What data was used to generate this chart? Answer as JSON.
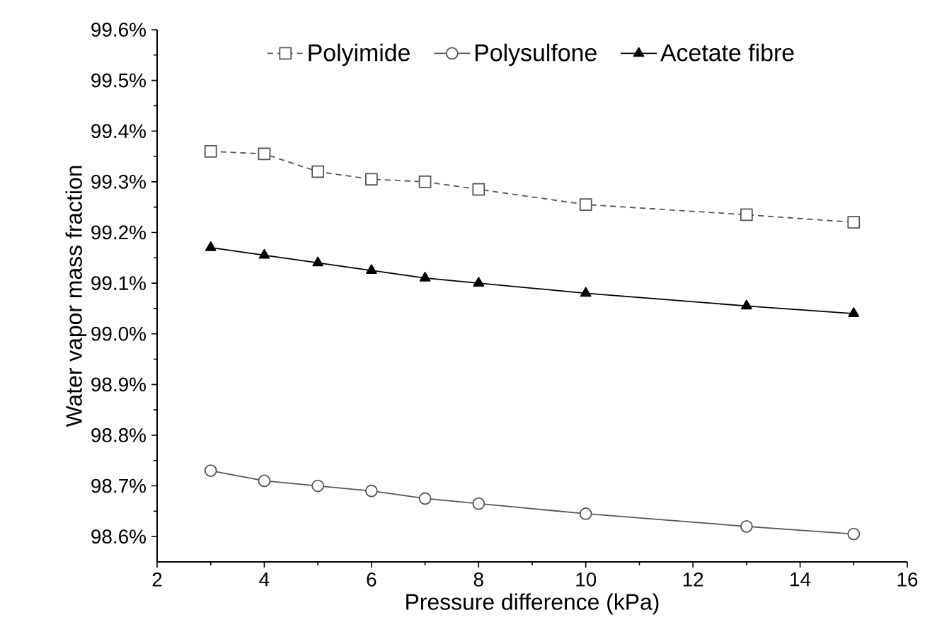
{
  "chart_data": {
    "type": "line",
    "xlabel": "Pressure difference (kPa)",
    "ylabel": "Water vapor mass fraction",
    "x": [
      3,
      4,
      5,
      6,
      7,
      8,
      10,
      13,
      15
    ],
    "series": [
      {
        "name": "Polyimide",
        "color": "#555555",
        "marker": "square",
        "line_style": "dashed",
        "values": [
          99.36,
          99.355,
          99.32,
          99.305,
          99.3,
          99.285,
          99.255,
          99.235,
          99.22
        ]
      },
      {
        "name": "Polysulfone",
        "color": "#555555",
        "marker": "circle",
        "line_style": "solid",
        "values": [
          98.73,
          98.71,
          98.7,
          98.69,
          98.675,
          98.665,
          98.645,
          98.62,
          98.605
        ]
      },
      {
        "name": "Acetate fibre",
        "color": "#000000",
        "marker": "triangle",
        "line_style": "solid",
        "values": [
          99.17,
          99.155,
          99.14,
          99.125,
          99.11,
          99.1,
          99.08,
          99.055,
          99.04
        ]
      }
    ],
    "xlim": [
      2,
      16
    ],
    "xticks": [
      2,
      4,
      6,
      8,
      10,
      12,
      14,
      16
    ],
    "ylim": [
      98.55,
      99.6
    ],
    "yticks": [
      {
        "value": 98.6,
        "label": "98.6%"
      },
      {
        "value": 98.7,
        "label": "98.7%"
      },
      {
        "value": 98.8,
        "label": "98.8%"
      },
      {
        "value": 98.9,
        "label": "98.9%"
      },
      {
        "value": 99.0,
        "label": "99.0%"
      },
      {
        "value": 99.1,
        "label": "99.1%"
      },
      {
        "value": 99.2,
        "label": "99.2%"
      },
      {
        "value": 99.3,
        "label": "99.3%"
      },
      {
        "value": 99.4,
        "label": "99.4%"
      },
      {
        "value": 99.5,
        "label": "99.5%"
      },
      {
        "value": 99.6,
        "label": "99.6%"
      }
    ],
    "grid": false,
    "legend": "top"
  }
}
